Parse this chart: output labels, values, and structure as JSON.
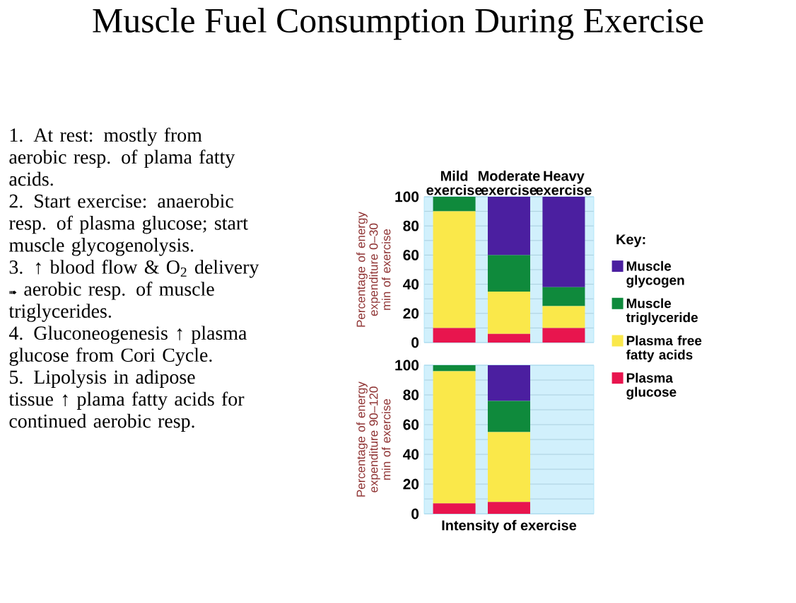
{
  "chart_data": [
    {
      "type": "bar",
      "stacked": true,
      "title": "Muscle Fuel Consumption During Exercise",
      "annotations": [
        "1. At rest: mostly from aerobic resp. of plama fatty acids.",
        "2. Start exercise: anaerobic resp. of plasma glucose; start muscle glycogenolysis.",
        "3. ↑ blood flow & O$_{2}$ delivery ➠ aerobic resp. of muscle triglycerides.",
        "4. Gluconeogenesis ↑ plasma glucose from Cori Cycle.",
        "5. Lipolysis in adipose tissue ↑ plama fatty acids for continued aerobic resp."
      ],
      "categories": [
        "Mild exercise",
        "Moderate exercise",
        "Heavy exercise"
      ],
      "ylabel": "Percentage of energy expenditure 0–30 min of exercise",
      "ylim": [
        0,
        100
      ],
      "yticks": [
        0,
        20,
        40,
        60,
        80,
        100
      ],
      "grid": "y",
      "legend": "right",
      "legend_title": "Key:",
      "bands": [
        {
          "axis": "y",
          "from": 0,
          "to": 100,
          "color": "#d1f0fc"
        }
      ],
      "series": [
        {
          "name": "Plasma glucose",
          "color": "#e8154e",
          "values": [
            10,
            6,
            10
          ]
        },
        {
          "name": "Plasma free fatty acids",
          "color": "#fae84a",
          "values": [
            80,
            29,
            15
          ]
        },
        {
          "name": "Muscle triglyceride",
          "color": "#0f8a3c",
          "values": [
            10,
            25,
            13
          ]
        },
        {
          "name": "Muscle glycogen",
          "color": "#4b1fa0",
          "values": [
            0,
            40,
            62
          ]
        }
      ]
    },
    {
      "type": "bar",
      "stacked": true,
      "categories": [
        null,
        null,
        null
      ],
      "tick_labels": "y",
      "bands": [
        {
          "axis": "y",
          "from": 0,
          "to": 100,
          "color": "#d1f0fc"
        }
      ],
      "ylabel": "Percentage of energy expenditure 90–120 min of exercise",
      "xlabel": "Intensity of exercise",
      "ylim": [
        0,
        100
      ],
      "yticks": [
        0,
        20,
        40,
        60,
        80,
        100
      ],
      "grid": "y",
      "series": [
        {
          "color": "#e8154e",
          "values": [
            7,
            8,
            null
          ]
        },
        {
          "color": "#fae84a",
          "values": [
            89,
            47,
            null
          ]
        },
        {
          "color": "#0f8a3c",
          "values": [
            4,
            21,
            null
          ]
        },
        {
          "color": "#4b1fa0",
          "values": [
            0,
            24,
            null
          ]
        }
      ]
    }
  ]
}
